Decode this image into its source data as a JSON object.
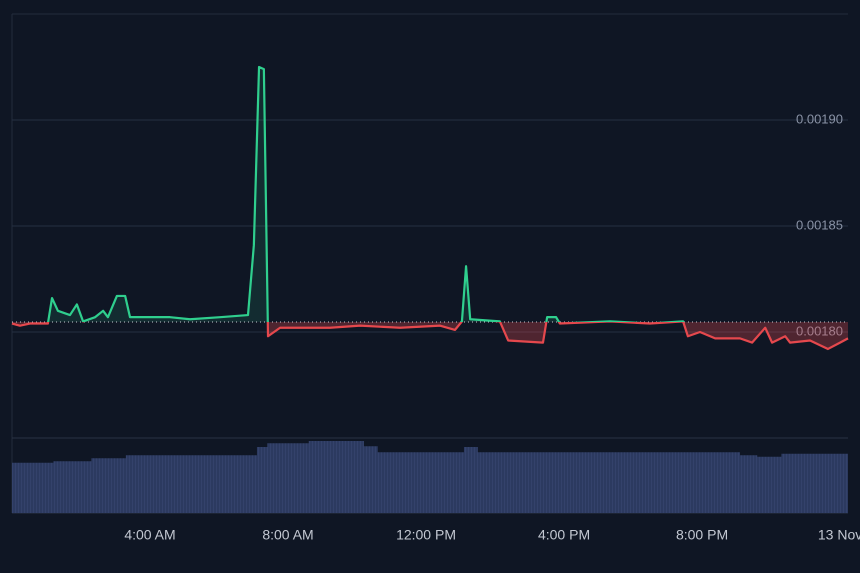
{
  "chart_data": {
    "type": "area",
    "x": [
      0,
      0.23,
      0.52,
      1.04,
      1.16,
      1.33,
      1.68,
      1.88,
      2.06,
      2.41,
      2.64,
      2.78,
      3.04,
      3.28,
      3.42,
      4.0,
      4.58,
      5.16,
      6.03,
      6.84,
      7.01,
      7.16,
      7.3,
      7.42,
      7.77,
      8.35,
      9.22,
      10.09,
      11.25,
      12.41,
      12.84,
      13.04,
      13.16,
      13.28,
      14.14,
      14.38,
      15.39,
      15.51,
      15.77,
      15.88,
      17.33,
      18.49,
      19.45,
      19.59,
      19.94,
      20.38,
      21.1,
      21.45,
      21.83,
      22.03,
      22.41,
      22.55,
      23.13,
      23.65,
      24.0,
      24.23
    ],
    "values": [
      0.001804,
      0.001803,
      0.001804,
      0.001804,
      0.001816,
      0.00181,
      0.001808,
      0.001813,
      0.001805,
      0.001807,
      0.00181,
      0.001807,
      0.001817,
      0.001817,
      0.001807,
      0.001807,
      0.001807,
      0.001806,
      0.001807,
      0.001808,
      0.001841,
      0.001925,
      0.001924,
      0.001798,
      0.001802,
      0.001802,
      0.001802,
      0.001803,
      0.001802,
      0.001803,
      0.001801,
      0.001805,
      0.001831,
      0.001806,
      0.001805,
      0.001796,
      0.001795,
      0.001807,
      0.001807,
      0.001804,
      0.001805,
      0.001804,
      0.001805,
      0.001798,
      0.0018,
      0.001797,
      0.001797,
      0.001795,
      0.001802,
      0.001795,
      0.001798,
      0.001795,
      0.001796,
      0.001792,
      0.001795,
      0.001797
    ],
    "baseline": 0.0018047,
    "up_color": "#2fcf8e",
    "down_color": "#e5484d",
    "xlim": [
      0,
      24.23
    ],
    "xticks": [
      {
        "value": 4,
        "label": "4:00 AM"
      },
      {
        "value": 8,
        "label": "8:00 AM"
      },
      {
        "value": 12,
        "label": "12:00 PM"
      },
      {
        "value": 16,
        "label": "4:00 PM"
      },
      {
        "value": 20,
        "label": "8:00 PM"
      },
      {
        "value": 24,
        "label": "13 Nov"
      }
    ],
    "ylim": [
      0.00175,
      0.00195
    ],
    "yticks": [
      {
        "value": 0.0018,
        "label": "0.00180"
      },
      {
        "value": 0.00185,
        "label": "0.00185"
      },
      {
        "value": 0.0019,
        "label": "0.00190"
      }
    ],
    "grid": true,
    "volume": {
      "x": [
        0,
        1.2,
        2.3,
        3.3,
        7.0,
        7.1,
        7.4,
        8.6,
        10.2,
        10.6,
        13.1,
        13.5,
        21.1,
        21.6,
        22.3,
        24.23
      ],
      "values": [
        67,
        69,
        73,
        77,
        77,
        88,
        93,
        96,
        89,
        81,
        88,
        81,
        77,
        75,
        79,
        79
      ],
      "ylim": [
        0,
        100
      ],
      "color": "#2c3a60"
    }
  }
}
